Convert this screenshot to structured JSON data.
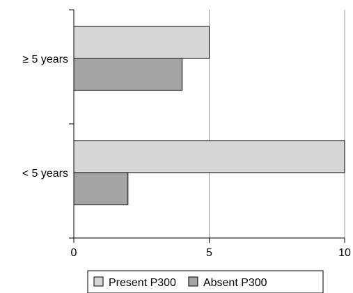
{
  "chart_data": {
    "type": "bar",
    "orientation": "horizontal",
    "categories": [
      "≥ 5 years",
      "< 5 years"
    ],
    "series": [
      {
        "name": "Present P300",
        "values": [
          5,
          10
        ],
        "color": "#d6d6d6"
      },
      {
        "name": "Absent P300",
        "values": [
          4,
          2
        ],
        "color": "#a4a4a4"
      }
    ],
    "xlim": [
      0,
      10
    ],
    "x_ticks": [
      0,
      5,
      10
    ],
    "x_tick_labels": [
      "0",
      "5",
      "10"
    ],
    "grid": "vertical lines at major ticks",
    "legend_position": "bottom"
  }
}
